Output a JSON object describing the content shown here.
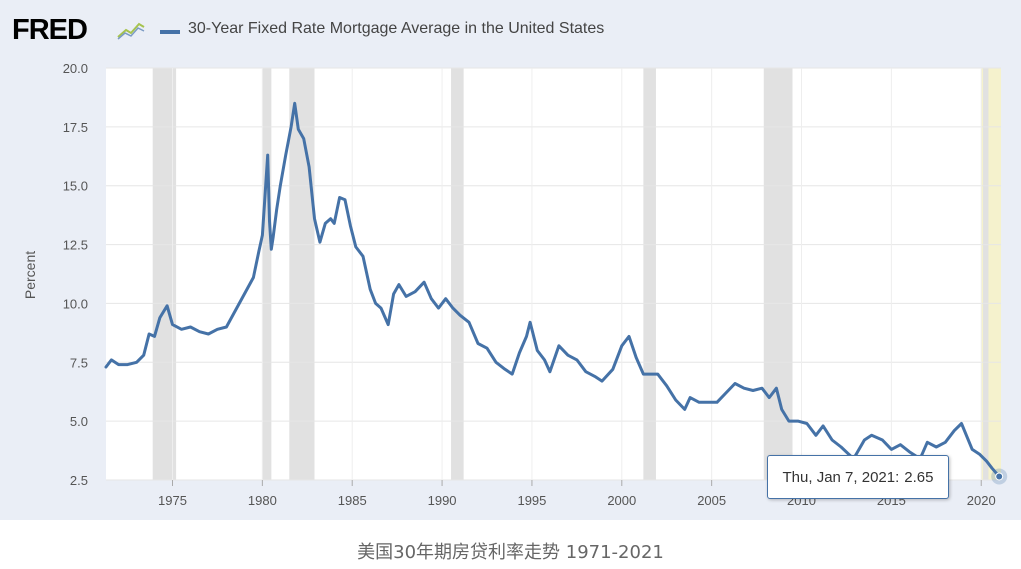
{
  "header": {
    "logo_text": "FRED",
    "logo_icon": "line-chart-icon"
  },
  "caption": "美国30年期房贷利率走势 1971-2021",
  "tooltip": {
    "date": "Thu, Jan 7, 2021",
    "value": "2.65"
  },
  "colors": {
    "series": "#4572a7",
    "recession": "#e1e1e1",
    "highlight": "#f5f2cd",
    "panel": "#eaeef6",
    "plot": "#ffffff"
  },
  "chart_data": {
    "type": "line",
    "title": "30-Year Fixed Rate Mortgage Average in the United States",
    "xlabel": "",
    "ylabel": "Percent",
    "xlim": [
      1971.3,
      2021.1
    ],
    "ylim": [
      2.5,
      20.0
    ],
    "grid": true,
    "legend": "top-left",
    "x_ticks": [
      1975,
      1980,
      1985,
      1990,
      1995,
      2000,
      2005,
      2010,
      2015,
      2020
    ],
    "x_tick_labels": [
      "1975",
      "1980",
      "1985",
      "1990",
      "1995",
      "2000",
      "2005",
      "2010",
      "2015",
      "2020"
    ],
    "y_ticks": [
      2.5,
      5.0,
      7.5,
      10.0,
      12.5,
      15.0,
      17.5,
      20.0
    ],
    "y_tick_labels": [
      "2.5",
      "5.0",
      "7.5",
      "10.0",
      "12.5",
      "15.0",
      "17.5",
      "20.0"
    ],
    "recessions": [
      [
        1973.9,
        1975.2
      ],
      [
        1980.0,
        1980.5
      ],
      [
        1981.5,
        1982.9
      ],
      [
        1990.5,
        1991.2
      ],
      [
        2001.2,
        2001.9
      ],
      [
        2007.9,
        2009.5
      ],
      [
        2020.1,
        2020.4
      ]
    ],
    "highlight_range": [
      2020.0,
      2021.1
    ],
    "series": [
      {
        "name": "30-Year Fixed Rate Mortgage Average in the United States",
        "x": [
          1971.3,
          1971.6,
          1972.0,
          1972.5,
          1973.0,
          1973.4,
          1973.7,
          1974.0,
          1974.3,
          1974.7,
          1975.0,
          1975.5,
          1976.0,
          1976.5,
          1977.0,
          1977.5,
          1978.0,
          1978.5,
          1979.0,
          1979.5,
          1979.8,
          1980.0,
          1980.3,
          1980.4,
          1980.5,
          1980.6,
          1980.8,
          1981.0,
          1981.3,
          1981.6,
          1981.8,
          1982.0,
          1982.3,
          1982.6,
          1982.9,
          1983.2,
          1983.5,
          1983.8,
          1984.0,
          1984.3,
          1984.6,
          1984.9,
          1985.2,
          1985.6,
          1986.0,
          1986.3,
          1986.6,
          1987.0,
          1987.3,
          1987.6,
          1988.0,
          1988.5,
          1989.0,
          1989.4,
          1989.8,
          1990.2,
          1990.6,
          1991.0,
          1991.5,
          1992.0,
          1992.5,
          1993.0,
          1993.5,
          1993.9,
          1994.3,
          1994.7,
          1994.9,
          1995.3,
          1995.7,
          1996.0,
          1996.5,
          1997.0,
          1997.5,
          1998.0,
          1998.5,
          1998.9,
          1999.5,
          2000.0,
          2000.4,
          2000.8,
          2001.2,
          2001.6,
          2002.0,
          2002.5,
          2003.0,
          2003.5,
          2003.8,
          2004.3,
          2004.8,
          2005.3,
          2005.8,
          2006.3,
          2006.8,
          2007.3,
          2007.8,
          2008.2,
          2008.6,
          2008.9,
          2009.3,
          2009.8,
          2010.3,
          2010.8,
          2011.2,
          2011.7,
          2012.2,
          2012.9,
          2013.5,
          2013.9,
          2014.5,
          2015.0,
          2015.5,
          2016.0,
          2016.6,
          2017.0,
          2017.5,
          2018.0,
          2018.5,
          2018.9,
          2019.5,
          2019.9,
          2020.3,
          2020.6,
          2021.0
        ],
        "values": [
          7.3,
          7.6,
          7.4,
          7.4,
          7.5,
          7.8,
          8.7,
          8.6,
          9.4,
          9.9,
          9.1,
          8.9,
          9.0,
          8.8,
          8.7,
          8.9,
          9.0,
          9.7,
          10.4,
          11.1,
          12.2,
          12.9,
          16.3,
          13.5,
          12.3,
          12.8,
          14.0,
          15.0,
          16.3,
          17.5,
          18.5,
          17.4,
          17.0,
          15.8,
          13.6,
          12.6,
          13.4,
          13.6,
          13.4,
          14.5,
          14.4,
          13.3,
          12.4,
          12.0,
          10.6,
          10.0,
          9.8,
          9.1,
          10.4,
          10.8,
          10.3,
          10.5,
          10.9,
          10.2,
          9.8,
          10.2,
          9.8,
          9.5,
          9.2,
          8.3,
          8.1,
          7.5,
          7.2,
          7.0,
          7.9,
          8.6,
          9.2,
          8.0,
          7.6,
          7.1,
          8.2,
          7.8,
          7.6,
          7.1,
          6.9,
          6.7,
          7.2,
          8.2,
          8.6,
          7.7,
          7.0,
          7.0,
          7.0,
          6.5,
          5.9,
          5.5,
          6.0,
          5.8,
          5.8,
          5.8,
          6.2,
          6.6,
          6.4,
          6.3,
          6.4,
          6.0,
          6.4,
          5.5,
          5.0,
          5.0,
          4.9,
          4.4,
          4.8,
          4.2,
          3.9,
          3.4,
          4.2,
          4.4,
          4.2,
          3.8,
          4.0,
          3.7,
          3.4,
          4.1,
          3.9,
          4.1,
          4.6,
          4.9,
          3.8,
          3.6,
          3.3,
          3.0,
          2.65
        ]
      }
    ]
  }
}
